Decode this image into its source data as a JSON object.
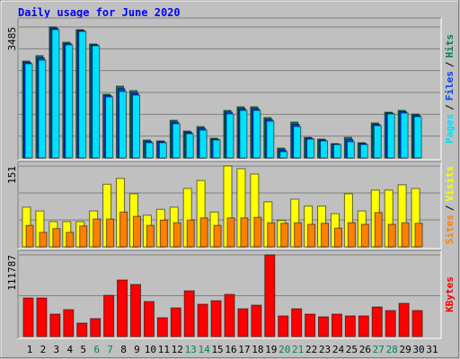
{
  "chart_data": {
    "type": "bar",
    "title": "Daily usage for June 2020",
    "separator": "/",
    "categories": [
      "1",
      "2",
      "3",
      "4",
      "5",
      "6",
      "7",
      "8",
      "9",
      "10",
      "11",
      "12",
      "13",
      "14",
      "15",
      "16",
      "17",
      "18",
      "19",
      "20",
      "21",
      "22",
      "23",
      "24",
      "25",
      "26",
      "27",
      "28",
      "29",
      "30",
      "31"
    ],
    "label_colors": [
      "#000000",
      "#000000",
      "#000000",
      "#000000",
      "#000000",
      "#00805c",
      "#00805c",
      "#000000",
      "#000000",
      "#000000",
      "#000000",
      "#000000",
      "#00805c",
      "#00805c",
      "#000000",
      "#000000",
      "#000000",
      "#000000",
      "#000000",
      "#00805c",
      "#00805c",
      "#000000",
      "#000000",
      "#000000",
      "#000000",
      "#000000",
      "#00805c",
      "#00805c",
      "#000000",
      "#000000",
      "#000000"
    ],
    "panels": [
      {
        "ylim": [
          0,
          3485
        ],
        "yticks": [
          3485
        ],
        "series": [
          {
            "name": "Hits",
            "color": "#00805c",
            "values": [
              2578,
              2721,
              3485,
              3079,
              3413,
              3031,
              1695,
              1910,
              1790,
              477,
              454,
              1003,
              716,
              835,
              525,
              1265,
              1361,
              1361,
              1074,
              263,
              955,
              549,
              501,
              382,
              549,
              406,
              931,
              1217,
              1265,
              1170,
              0
            ]
          },
          {
            "name": "Files",
            "color": "#0040ff",
            "values": [
              2540,
              2660,
              3450,
              3040,
              3390,
              3010,
              1660,
              1840,
              1730,
              440,
              430,
              955,
              680,
              790,
              500,
              1220,
              1310,
              1310,
              1025,
              215,
              895,
              525,
              478,
              370,
              490,
              382,
              895,
              1195,
              1230,
              1135,
              0
            ]
          },
          {
            "name": "Pages",
            "color": "#00e0ff",
            "values": [
              2506,
              2602,
              3413,
              3008,
              3366,
              2984,
              1623,
              1766,
              1671,
              406,
              406,
              907,
              644,
              740,
              477,
              1170,
              1265,
              1265,
              979,
              167,
              835,
              501,
              454,
              358,
              430,
              358,
              859,
              1170,
              1194,
              1098,
              0
            ]
          }
        ]
      },
      {
        "ylim": [
          0,
          151
        ],
        "yticks": [
          151
        ],
        "series": [
          {
            "name": "Visits",
            "color": "#ffff00",
            "values": [
              74,
              67,
              47,
              47,
              47,
              67,
              117,
              128,
              99,
              59,
              70,
              74,
              109,
              124,
              65,
              151,
              146,
              136,
              84,
              49,
              89,
              76,
              76,
              62,
              99,
              67,
              106,
              106,
              116,
              109,
              0
            ]
          },
          {
            "name": "Sites",
            "color": "#ff8000",
            "values": [
              40,
              27,
              34,
              27,
              39,
              52,
              52,
              65,
              57,
              40,
              50,
              45,
              50,
              54,
              40,
              54,
              54,
              55,
              45,
              44,
              45,
              42,
              44,
              35,
              45,
              42,
              64,
              42,
              45,
              44,
              0
            ]
          }
        ]
      },
      {
        "ylim": [
          0,
          111787
        ],
        "yticks": [
          111787
        ],
        "series": [
          {
            "name": "KBytes",
            "color": "#ff0000",
            "values": [
              52821,
              52821,
              30710,
              36852,
              18426,
              24568,
              56506,
              77389,
              71247,
              47908,
              25796,
              39309,
              62648,
              44222,
              49136,
              57735,
              38080,
              42994,
              111787,
              28253,
              38080,
              30710,
              27025,
              30710,
              28253,
              28253,
              40537,
              35624,
              45451,
              35624,
              0
            ]
          }
        ]
      }
    ]
  }
}
